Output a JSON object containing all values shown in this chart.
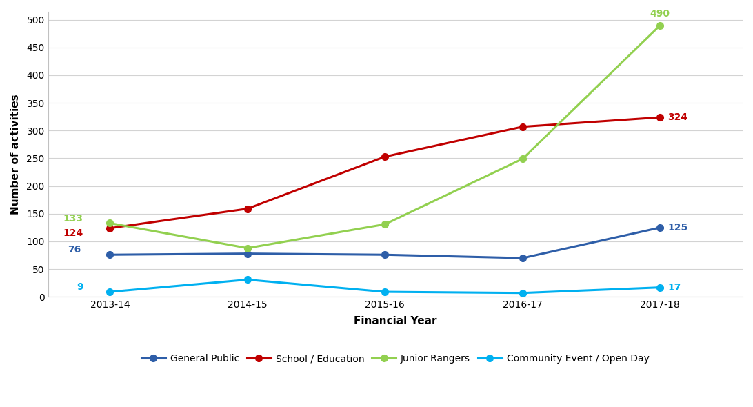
{
  "years": [
    "2013-14",
    "2014-15",
    "2015-16",
    "2016-17",
    "2017-18"
  ],
  "series": [
    {
      "name": "General Public",
      "values": [
        76,
        78,
        76,
        70,
        125
      ],
      "color": "#2e5ea8",
      "label_first": {
        "value": 76,
        "xoff": -30,
        "yoff": 5,
        "ha": "right"
      },
      "label_last": {
        "value": 125,
        "xoff": 8,
        "yoff": 0,
        "ha": "left"
      }
    },
    {
      "name": "School / Education",
      "values": [
        124,
        159,
        253,
        307,
        324
      ],
      "color": "#c00000",
      "label_first": {
        "value": 124,
        "xoff": -28,
        "yoff": -5,
        "ha": "right"
      },
      "label_last": {
        "value": 324,
        "xoff": 8,
        "yoff": 0,
        "ha": "left"
      }
    },
    {
      "name": "Junior Rangers",
      "values": [
        133,
        88,
        131,
        249,
        490
      ],
      "color": "#92d050",
      "label_first": {
        "value": 133,
        "xoff": -28,
        "yoff": 5,
        "ha": "right"
      },
      "label_last": {
        "value": 490,
        "xoff": 0,
        "yoff": 12,
        "ha": "center"
      }
    },
    {
      "name": "Community Event / Open Day",
      "values": [
        9,
        31,
        9,
        7,
        17
      ],
      "color": "#00b0f0",
      "label_first": {
        "value": 9,
        "xoff": -28,
        "yoff": 5,
        "ha": "right"
      },
      "label_last": {
        "value": 17,
        "xoff": 8,
        "yoff": 0,
        "ha": "left"
      }
    }
  ],
  "xlabel": "Financial Year",
  "ylabel": "Number of activities",
  "ylim": [
    0,
    515
  ],
  "yticks": [
    0,
    50,
    100,
    150,
    200,
    250,
    300,
    350,
    400,
    450,
    500
  ],
  "background_color": "#ffffff",
  "grid_color": "#d3d3d3",
  "axis_label_fontsize": 11,
  "tick_fontsize": 10,
  "legend_fontsize": 10,
  "data_label_fontsize": 10,
  "line_width": 2.2,
  "marker_size": 7
}
